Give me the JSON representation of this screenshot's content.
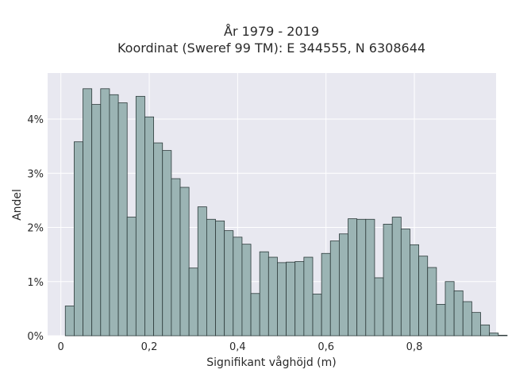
{
  "chart_data": {
    "type": "bar",
    "title_line1": "År 1979 - 2019",
    "title_line2": "Koordinat (Sweref 99 TM): E 344555, N 6308644",
    "xlabel": "Signifikant våghöjd (m)",
    "ylabel": "Andel",
    "bin_start": 0.01,
    "bin_width": 0.02,
    "values": [
      0.55,
      3.58,
      4.56,
      4.27,
      4.56,
      4.45,
      4.3,
      2.19,
      4.42,
      4.04,
      3.56,
      3.42,
      2.9,
      2.74,
      1.25,
      2.38,
      2.15,
      2.12,
      1.94,
      1.82,
      1.69,
      0.78,
      1.55,
      1.45,
      1.35,
      1.36,
      1.37,
      1.45,
      0.77,
      1.52,
      1.75,
      1.88,
      2.16,
      2.15,
      2.15,
      1.07,
      2.06,
      2.19,
      1.97,
      1.68,
      1.47,
      1.26,
      0.58,
      1.0,
      0.83,
      0.63,
      0.43,
      0.2,
      0.05,
      0.01
    ],
    "xlim": [
      -0.03,
      0.985
    ],
    "ylim": [
      0,
      4.85
    ],
    "xticks": [
      0,
      0.2,
      0.4,
      0.6,
      0.8
    ],
    "xtick_labels": [
      "0",
      "0,2",
      "0,4",
      "0,6",
      "0,8"
    ],
    "yticks": [
      0,
      1,
      2,
      3,
      4
    ],
    "ytick_labels": [
      "0%",
      "1%",
      "2%",
      "3%",
      "4%"
    ],
    "grid": true,
    "colors": {
      "bar_fill": "#9bb4b4",
      "bar_stroke": "#2d3b3b",
      "plot_background": "#e8e8f0",
      "grid": "#ffffff",
      "text": "#2a2a2a"
    }
  }
}
